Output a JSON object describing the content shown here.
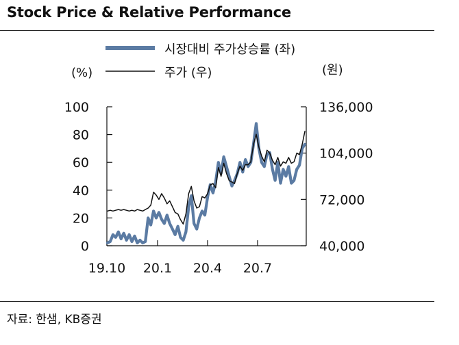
{
  "title": "Stock Price & Relative Performance",
  "source": "자료: 한샘, KB증권",
  "chart_data": {
    "type": "line",
    "left_unit": "(%)",
    "right_unit": "(원)",
    "legend_position": "top",
    "x_tick_labels": [
      "19.10",
      "20.1",
      "20.4",
      "20.7"
    ],
    "left_axis": {
      "ylim": [
        0,
        100
      ],
      "ticks": [
        "0",
        "20",
        "40",
        "60",
        "80",
        "100"
      ]
    },
    "right_axis": {
      "ylim": [
        40000,
        136000
      ],
      "ticks": [
        "40,000",
        "72,000",
        "104,000",
        "136,000"
      ]
    },
    "series": [
      {
        "name": "시장대비 주가상승률 (좌)",
        "axis": "left",
        "color": "#5b7ba3",
        "values": [
          2,
          3,
          8,
          6,
          10,
          5,
          9,
          4,
          8,
          3,
          7,
          2,
          4,
          2,
          3,
          20,
          15,
          25,
          20,
          24,
          19,
          16,
          22,
          16,
          12,
          8,
          14,
          6,
          4,
          10,
          28,
          36,
          16,
          12,
          20,
          25,
          22,
          35,
          44,
          38,
          46,
          60,
          52,
          64,
          57,
          50,
          43,
          47,
          52,
          60,
          53,
          62,
          57,
          60,
          73,
          88,
          70,
          60,
          57,
          66,
          67,
          55,
          47,
          60,
          45,
          55,
          50,
          57,
          45,
          47,
          55,
          58,
          70,
          73
        ]
      },
      {
        "name": "주가 (우)",
        "axis": "right",
        "color": "#111111",
        "values": [
          64000,
          64500,
          64000,
          64500,
          65000,
          64500,
          65000,
          64500,
          64000,
          64500,
          64000,
          65000,
          64500,
          64000,
          65000,
          66000,
          68000,
          77000,
          75000,
          72000,
          76000,
          73000,
          69000,
          71000,
          67000,
          63000,
          62000,
          58000,
          55000,
          62000,
          76000,
          81000,
          71000,
          66000,
          67000,
          74000,
          73000,
          76000,
          82000,
          83000,
          80000,
          94000,
          88000,
          97000,
          90000,
          85000,
          84000,
          83000,
          90000,
          95000,
          92000,
          96000,
          96000,
          98000,
          110000,
          117000,
          108000,
          102000,
          98000,
          106000,
          104000,
          99000,
          96000,
          101000,
          95000,
          98000,
          97000,
          101000,
          97000,
          98000,
          104000,
          103000,
          110000,
          119000
        ]
      }
    ]
  }
}
